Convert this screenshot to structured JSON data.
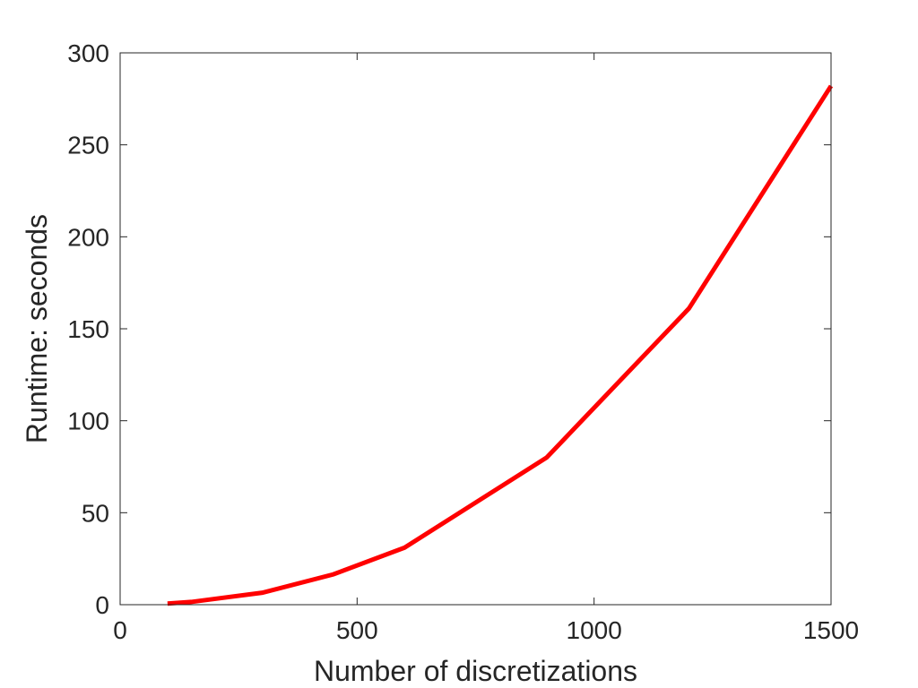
{
  "chart_data": {
    "type": "line",
    "title": "",
    "xlabel": "Number of discretizations",
    "ylabel": "Runtime: seconds",
    "xlim": [
      0,
      1500
    ],
    "ylim": [
      0,
      300
    ],
    "xticks": [
      0,
      500,
      1000,
      1500
    ],
    "yticks": [
      0,
      50,
      100,
      150,
      200,
      250,
      300
    ],
    "grid": false,
    "box": true,
    "series": [
      {
        "color": "#ff0000",
        "x": [
          100,
          150,
          300,
          450,
          600,
          900,
          1200,
          1500
        ],
        "y": [
          0.6,
          1.5,
          6.5,
          16.5,
          31,
          80,
          161,
          282
        ]
      }
    ]
  }
}
